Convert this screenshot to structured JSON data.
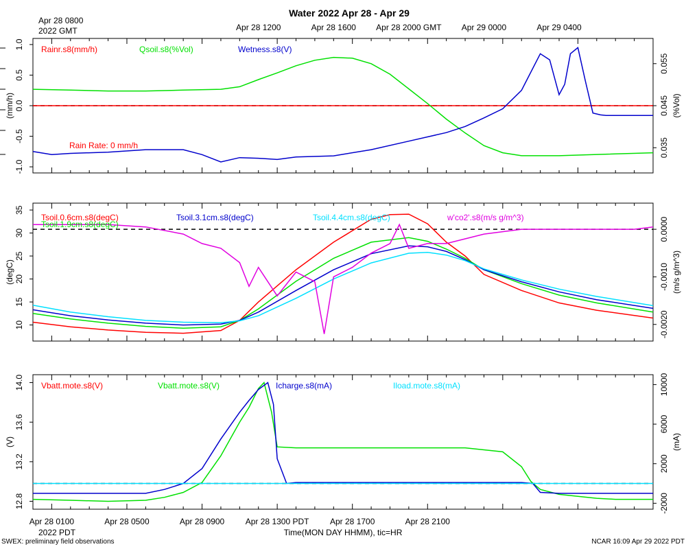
{
  "title": "Water 2022 Apr 28 - Apr 29",
  "top_axis": {
    "first_label_line1": "Apr 28 0800",
    "first_label_line2": "2022 GMT",
    "labels": [
      "Apr 28 1200",
      "Apr 28 1600",
      "Apr 28 2000 GMT",
      "Apr 29 0000",
      "Apr 29 0400"
    ]
  },
  "bottom_axis": {
    "labels": [
      "Apr 28 0100",
      "Apr 28 0500",
      "Apr 28 0900",
      "Apr 28 1300 PDT",
      "Apr 28 1700",
      "Apr 28 2100"
    ],
    "year_label": "2022 PDT",
    "title": "Time(MON DAY HHMM), tic=HR"
  },
  "footer": {
    "left": "SWEX: preliminary field observations",
    "right": "NCAR 16:09 Apr 29 2022 PDT"
  },
  "colors": {
    "red": "#ff0000",
    "green": "#00e000",
    "blue": "#0000cc",
    "cyan": "#00e0ff",
    "magenta": "#e000e0"
  },
  "chart_data": [
    {
      "type": "line",
      "panel": "top",
      "x_unit": "hours since Apr 28 0000 PDT",
      "xlim": [
        0,
        33
      ],
      "left_axis": {
        "label": "(mm/h)",
        "ylim": [
          -1.1,
          1.1
        ],
        "ticks": [
          "-1.0",
          "-0.5",
          "0.0",
          "0.5",
          "1.0"
        ]
      },
      "right_axis": {
        "label": "(%Vol)",
        "ylim": [
          0.029,
          0.061
        ],
        "ticks": [
          "0.035",
          "0.045",
          "0.055"
        ]
      },
      "legend": [
        "Rainr.s8(mm/h)",
        "Qsoil.s8(%Vol)",
        "Wetness.s8(V)"
      ],
      "annotation": "Rain Rate: 0 mm/h",
      "series": [
        {
          "name": "Rainr.s8(mm/h)",
          "color": "red",
          "axis": "left",
          "x": [
            0,
            33
          ],
          "y": [
            0,
            0
          ]
        },
        {
          "name": "Qsoil.s8(%Vol)",
          "color": "green",
          "axis": "right",
          "x": [
            0,
            2,
            4,
            6,
            8,
            10,
            11,
            12,
            13,
            14,
            15,
            16,
            17,
            18,
            19,
            20,
            21,
            22,
            23,
            24,
            25,
            26,
            28,
            30,
            33
          ],
          "y": [
            0.0489,
            0.0487,
            0.0485,
            0.0485,
            0.0487,
            0.0489,
            0.0495,
            0.0512,
            0.0528,
            0.0545,
            0.0558,
            0.0565,
            0.0563,
            0.055,
            0.0525,
            0.049,
            0.0455,
            0.0418,
            0.0385,
            0.0355,
            0.0338,
            0.0331,
            0.0331,
            0.0334,
            0.0338
          ]
        },
        {
          "name": "Wetness.s8(V)",
          "color": "blue",
          "axis": "left",
          "x": [
            0,
            1,
            2,
            4,
            6,
            8,
            9,
            10,
            11,
            12,
            13,
            14,
            16,
            18,
            20,
            22,
            23,
            24,
            25,
            26,
            27,
            27.5,
            28,
            28.3,
            28.6,
            29,
            29.4,
            29.8,
            30.2,
            30.5,
            31,
            32,
            33
          ],
          "y": [
            -0.75,
            -0.8,
            -0.78,
            -0.76,
            -0.72,
            -0.72,
            -0.8,
            -0.92,
            -0.85,
            -0.86,
            -0.88,
            -0.84,
            -0.82,
            -0.72,
            -0.58,
            -0.44,
            -0.34,
            -0.2,
            -0.05,
            0.25,
            0.85,
            0.75,
            0.18,
            0.35,
            0.85,
            0.95,
            0.4,
            -0.12,
            -0.15,
            -0.16,
            -0.16,
            -0.16,
            -0.16
          ]
        }
      ]
    },
    {
      "type": "line",
      "panel": "middle",
      "x_unit": "hours since Apr 28 0000 PDT",
      "xlim": [
        0,
        33
      ],
      "left_axis": {
        "label": "(degC)",
        "ylim": [
          6.5,
          36.5
        ],
        "ticks": [
          "10",
          "15",
          "20",
          "25",
          "30",
          "35"
        ]
      },
      "right_axis": {
        "label": "(m/s g/m^3)",
        "ylim": [
          -0.00235,
          0.00055
        ],
        "ticks": [
          "-0.0020",
          "-0.0010",
          "0.0000"
        ]
      },
      "legend": [
        "Tsoil.0.6cm.s8(degC)",
        "Tsoil.1.9cm.s8(degC)",
        "Tsoil.3.1cm.s8(degC)",
        "Tsoil.4.4cm.s8(degC)",
        "w'co2'.s8(m/s g/m^3)"
      ],
      "series": [
        {
          "name": "Tsoil.0.6cm.s8(degC)",
          "color": "red",
          "axis": "left",
          "x": [
            0,
            2,
            4,
            6,
            8,
            10,
            11,
            12,
            14,
            16,
            18,
            19,
            20,
            21,
            22,
            23,
            24,
            26,
            28,
            30,
            33
          ],
          "y": [
            10.6,
            9.6,
            8.9,
            8.4,
            8.2,
            8.8,
            11,
            15,
            22,
            28,
            33,
            34,
            34.1,
            32,
            28,
            25,
            21,
            17.5,
            14.8,
            13.2,
            11.5
          ]
        },
        {
          "name": "Tsoil.1.9cm.s8(degC)",
          "color": "green",
          "axis": "left",
          "x": [
            0,
            2,
            4,
            6,
            8,
            10,
            11,
            12,
            14,
            16,
            18,
            20,
            21,
            22,
            23,
            24,
            26,
            28,
            30,
            33
          ],
          "y": [
            12.5,
            11.3,
            10.4,
            9.7,
            9.3,
            9.6,
            11,
            13.5,
            19.5,
            24.5,
            28,
            29,
            28.2,
            26.5,
            24.5,
            22,
            19,
            16.5,
            14.8,
            12.8
          ]
        },
        {
          "name": "Tsoil.3.1cm.s8(degC)",
          "color": "blue",
          "axis": "left",
          "x": [
            0,
            2,
            4,
            6,
            8,
            10,
            11,
            12,
            14,
            16,
            18,
            20,
            21,
            22,
            23,
            24,
            26,
            28,
            30,
            33
          ],
          "y": [
            13.3,
            12,
            11.1,
            10.4,
            10,
            10.2,
            11,
            12.8,
            17.5,
            22,
            25.5,
            27.2,
            27,
            26,
            24.2,
            22,
            19.4,
            17.2,
            15.5,
            13.6
          ]
        },
        {
          "name": "Tsoil.4.4cm.s8(degC)",
          "color": "cyan",
          "axis": "left",
          "x": [
            0,
            2,
            4,
            6,
            8,
            10,
            11,
            12,
            14,
            16,
            18,
            20,
            21,
            22,
            23,
            24,
            26,
            28,
            30,
            33
          ],
          "y": [
            14.3,
            12.8,
            11.8,
            11,
            10.6,
            10.5,
            10.9,
            12,
            15.8,
            20,
            23.5,
            25.6,
            25.8,
            25.2,
            24,
            22.2,
            19.8,
            17.8,
            16.2,
            14.2
          ]
        },
        {
          "name": "w'co2'.s8(m/s g/m^3)",
          "color": "magenta",
          "axis": "right",
          "x": [
            0,
            2,
            4,
            6,
            8,
            9,
            10,
            11,
            11.5,
            12,
            13,
            14,
            15,
            15.5,
            16,
            17,
            18,
            19,
            19.5,
            20,
            21,
            22,
            23,
            24,
            26,
            28,
            30,
            32,
            33
          ],
          "y": [
            0.0001,
            0.0001,
            0.0001,
            5e-05,
            -0.0001,
            -0.0003,
            -0.0004,
            -0.0007,
            -0.0012,
            -0.0008,
            -0.0014,
            -0.0009,
            -0.0011,
            -0.0022,
            -0.001,
            -0.0008,
            -0.0005,
            -0.0003,
            0.0001,
            -0.0004,
            -0.0003,
            -0.0003,
            -0.0002,
            -0.0001,
            0,
            0,
            0,
            0,
            5e-05
          ]
        }
      ]
    },
    {
      "type": "line",
      "panel": "bottom",
      "x_unit": "hours since Apr 28 0000 PDT",
      "xlim": [
        0,
        33
      ],
      "left_axis": {
        "label": "(V)",
        "ylim": [
          12.72,
          14.08
        ],
        "ticks": [
          "12.8",
          "13.2",
          "13.6",
          "14.0"
        ]
      },
      "right_axis": {
        "label": "(mA)",
        "ylim": [
          -2600,
          11000
        ],
        "ticks": [
          "-2000",
          "2000",
          "6000",
          "10000"
        ]
      },
      "legend": [
        "Vbatt.mote.s8(V)",
        "Vbatt.mote.s8(V)",
        "Icharge.s8(mA)",
        "Iload.mote.s8(mA)"
      ],
      "series": [
        {
          "name": "Vbatt.mote.s8(V)",
          "color": "green",
          "axis": "left",
          "x": [
            0,
            2,
            4,
            6,
            7,
            8,
            9,
            10,
            11,
            11.5,
            12,
            12.3,
            12.7,
            13,
            14,
            16,
            18,
            20,
            23,
            24,
            25,
            26,
            26.5,
            27,
            28,
            29,
            30,
            31,
            33
          ],
          "y": [
            12.82,
            12.81,
            12.8,
            12.81,
            12.84,
            12.89,
            12.99,
            13.26,
            13.6,
            13.75,
            13.94,
            14.0,
            13.7,
            13.35,
            13.34,
            13.34,
            13.34,
            13.34,
            13.34,
            13.32,
            13.3,
            13.15,
            13.0,
            12.92,
            12.87,
            12.85,
            12.83,
            12.82,
            12.82
          ]
        },
        {
          "name": "Icharge.s8(mA)",
          "color": "blue",
          "axis": "right",
          "x": [
            0,
            6,
            7,
            8,
            9,
            10,
            11,
            11.5,
            12,
            12.5,
            12.8,
            13,
            13.5,
            14,
            16,
            18,
            20,
            22,
            24,
            25,
            26,
            26.6,
            27,
            28,
            30,
            33
          ],
          "y": [
            -1000,
            -1000,
            -600,
            0,
            1500,
            4500,
            7200,
            8400,
            9500,
            10200,
            8000,
            2500,
            0,
            100,
            100,
            100,
            100,
            100,
            100,
            100,
            100,
            0,
            -900,
            -1000,
            -1000,
            -1000
          ]
        },
        {
          "name": "Iload.mote.s8(mA)",
          "color": "cyan",
          "axis": "right",
          "x": [
            0,
            33
          ],
          "y": [
            0,
            0
          ]
        }
      ]
    }
  ]
}
